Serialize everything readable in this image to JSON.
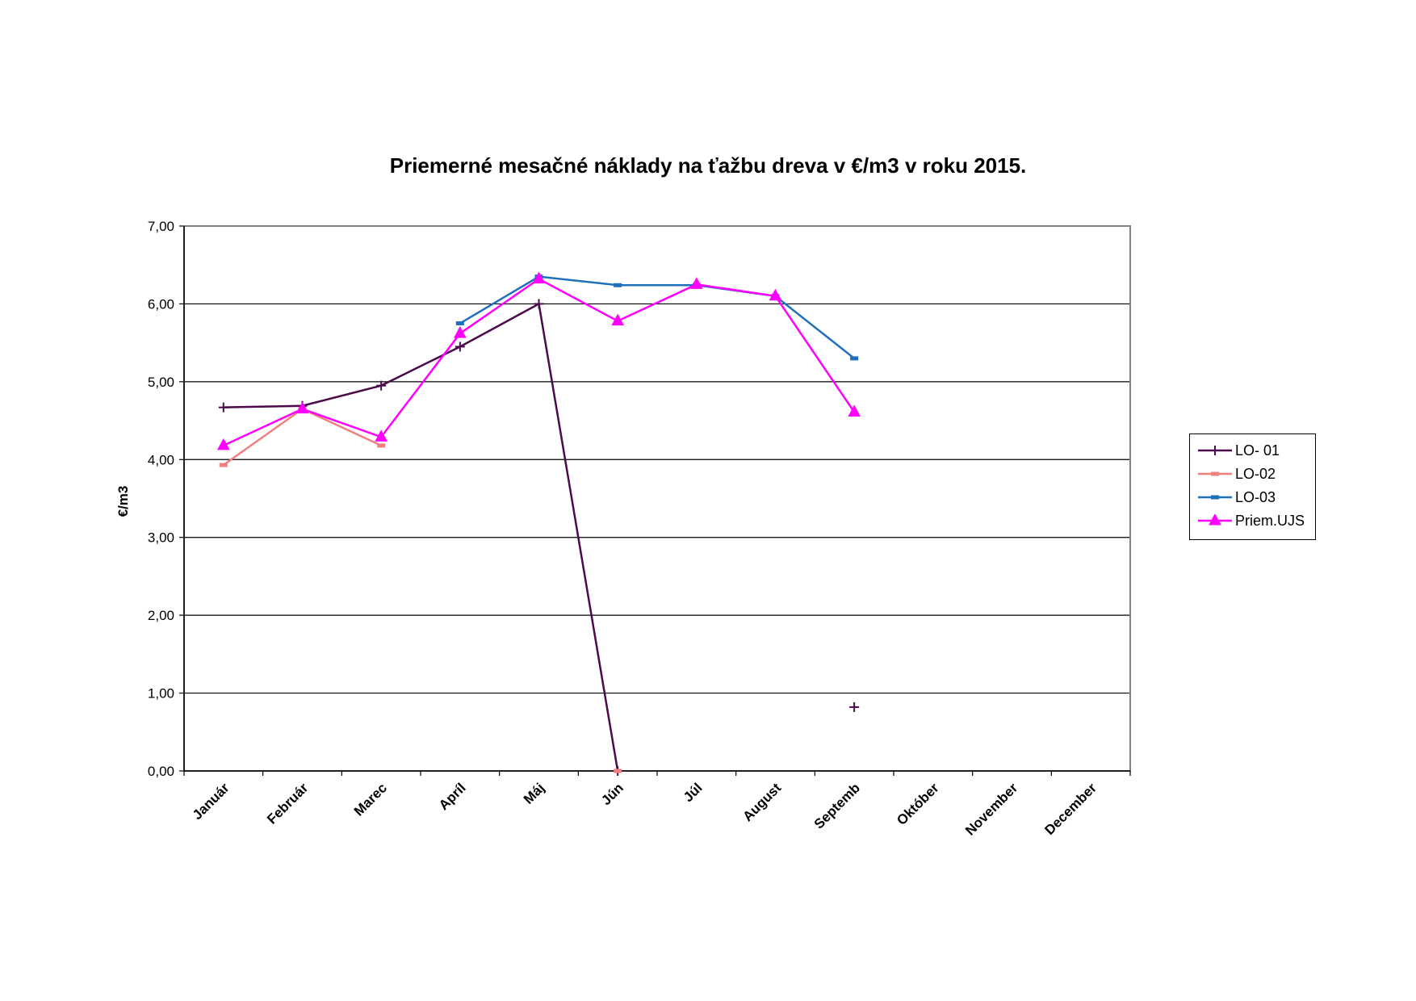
{
  "chart_data": {
    "type": "line",
    "title": "Priemerné mesačné náklady na ťažbu dreva v €/m3 v roku 2015.",
    "xlabel": "",
    "ylabel": "€/m3",
    "ylim": [
      0,
      7
    ],
    "y_ticks": [
      "0,00",
      "1,00",
      "2,00",
      "3,00",
      "4,00",
      "5,00",
      "6,00",
      "7,00"
    ],
    "grid": true,
    "legend_position": "right",
    "categories": [
      "Január",
      "Február",
      "Marec",
      "Apríl",
      "Máj",
      "Jún",
      "Júl",
      "August",
      "Septemb",
      "Október",
      "November",
      "December"
    ],
    "series": [
      {
        "name": "LO- 01",
        "color": "#4b0a4b",
        "marker": "plus",
        "values": [
          4.67,
          4.69,
          4.95,
          5.45,
          6.0,
          0.0,
          null,
          null,
          0.82,
          null,
          null,
          null
        ]
      },
      {
        "name": "LO-02",
        "color": "#f08080",
        "marker": "dash",
        "values": [
          3.93,
          4.65,
          4.18,
          null,
          null,
          0.0,
          null,
          null,
          null,
          null,
          null,
          null
        ]
      },
      {
        "name": "LO-03",
        "color": "#1f6fba",
        "marker": "dash",
        "values": [
          null,
          null,
          null,
          5.75,
          6.35,
          6.24,
          6.24,
          6.1,
          5.3,
          null,
          null,
          null
        ]
      },
      {
        "name": "Priem.UJS",
        "color": "#ff00ff",
        "marker": "triangle",
        "values": [
          4.18,
          4.65,
          4.29,
          5.62,
          6.32,
          5.78,
          6.25,
          6.1,
          4.61,
          null,
          null,
          null
        ]
      }
    ]
  }
}
